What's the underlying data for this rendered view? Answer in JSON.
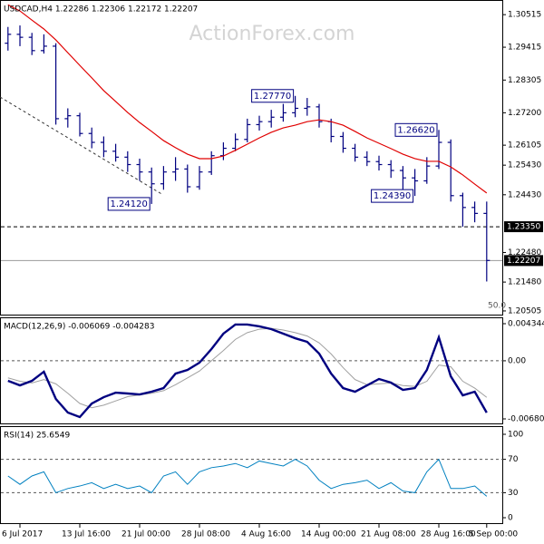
{
  "title": "USDCAD,H4  1.22286 1.22306 1.22172 1.22207",
  "watermark": "ActionForex.com",
  "chart_data": [
    {
      "type": "ohlc",
      "color": "#000080",
      "categories": [
        null,
        "6 Jul 2017",
        null,
        null,
        null,
        null,
        "13 Jul 16:00",
        null,
        null,
        null,
        null,
        "21 Jul 00:00",
        null,
        null,
        null,
        null,
        "28 Jul 08:00",
        null,
        null,
        null,
        null,
        "4 Aug 16:00",
        null,
        null,
        null,
        null,
        "14 Aug 00:00",
        null,
        null,
        null,
        null,
        "21 Aug 08:00",
        null,
        null,
        null,
        null,
        "28 Aug 16:00",
        null,
        null,
        null,
        "5 Sep 00:00"
      ],
      "open": [
        1.2955,
        1.2985,
        1.2975,
        1.293,
        1.2945,
        1.27,
        1.271,
        1.265,
        1.262,
        1.259,
        1.257,
        1.2545,
        1.252,
        1.248,
        1.252,
        1.253,
        1.247,
        1.252,
        1.2575,
        1.26,
        1.263,
        1.268,
        1.269,
        1.2705,
        1.272,
        1.2735,
        1.274,
        1.269,
        1.264,
        1.26,
        1.257,
        1.2555,
        1.2545,
        1.2525,
        1.25,
        1.249,
        1.254,
        1.262,
        1.244,
        1.24,
        1.238
      ],
      "high": [
        1.301,
        1.3015,
        1.299,
        1.2985,
        1.2955,
        1.2735,
        1.272,
        1.267,
        1.264,
        1.2615,
        1.259,
        1.2565,
        1.2535,
        1.254,
        1.257,
        1.2545,
        1.254,
        1.259,
        1.262,
        1.265,
        1.27,
        1.271,
        1.273,
        1.275,
        1.2777,
        1.277,
        1.275,
        1.27,
        1.2655,
        1.2615,
        1.259,
        1.2575,
        1.256,
        1.254,
        1.253,
        1.257,
        1.2662,
        1.263,
        1.245,
        1.242,
        1.242
      ],
      "low": [
        1.293,
        1.2945,
        1.2915,
        1.292,
        1.268,
        1.267,
        1.264,
        1.26,
        1.257,
        1.2555,
        1.252,
        1.249,
        1.2412,
        1.246,
        1.249,
        1.245,
        1.246,
        1.251,
        1.256,
        1.259,
        1.262,
        1.266,
        1.267,
        1.269,
        1.2705,
        1.271,
        1.267,
        1.262,
        1.2585,
        1.2555,
        1.254,
        1.2525,
        1.25,
        1.246,
        1.2439,
        1.248,
        1.253,
        1.242,
        1.2335,
        1.235,
        1.215
      ],
      "close": [
        1.2985,
        1.2975,
        1.293,
        1.2945,
        1.27,
        1.271,
        1.265,
        1.262,
        1.259,
        1.257,
        1.2545,
        1.252,
        1.248,
        1.252,
        1.253,
        1.247,
        1.252,
        1.2575,
        1.26,
        1.263,
        1.268,
        1.269,
        1.2705,
        1.272,
        1.2735,
        1.274,
        1.269,
        1.264,
        1.26,
        1.257,
        1.2555,
        1.2545,
        1.2525,
        1.25,
        1.249,
        1.254,
        1.262,
        1.244,
        1.24,
        1.238,
        1.2221
      ],
      "ma": {
        "color": "#e00000",
        "values": [
          1.3085,
          1.3064,
          1.3033,
          1.3003,
          1.2966,
          1.2923,
          1.288,
          1.2838,
          1.2795,
          1.2758,
          1.2721,
          1.2687,
          1.2657,
          1.2626,
          1.2602,
          1.258,
          1.2565,
          1.2565,
          1.2574,
          1.2593,
          1.2614,
          1.2635,
          1.2654,
          1.2669,
          1.2678,
          1.269,
          1.2696,
          1.269,
          1.2678,
          1.2657,
          1.2635,
          1.2617,
          1.2599,
          1.258,
          1.2565,
          1.2556,
          1.2556,
          1.2537,
          1.251,
          1.2479,
          1.2449
        ]
      },
      "annotations": [
        {
          "value": 1.2777,
          "label": "1.27770"
        },
        {
          "value": 1.2662,
          "label": "1.26620"
        },
        {
          "value": 1.2439,
          "label": "1.24390"
        },
        {
          "value": 1.2412,
          "label": "1.24120"
        }
      ],
      "levels": [
        {
          "value": 1.2335,
          "label": "1.23350",
          "style": "dashed"
        },
        {
          "value": 1.22207,
          "label": "1.22207",
          "style": "solid"
        }
      ],
      "ylim": [
        1.2035,
        1.3101
      ],
      "yticks": [
        1.30515,
        1.29415,
        1.28305,
        {
          "value": 1.272,
          "label": "1.27200"
        },
        1.26105,
        {
          "value": 1.2543,
          "label": "1.25430"
        },
        {
          "value": 1.2443,
          "label": "1.24430"
        },
        {
          "value": 1.2248,
          "label": "1.22480"
        },
        {
          "value": 1.2148,
          "label": "1.21480"
        },
        1.20505
      ],
      "scale_label": "50.0"
    },
    {
      "type": "macd",
      "title": "MACD(12,26,9) -0.006069 -0.004283",
      "series": [
        {
          "color": "#000080",
          "values": [
            -0.00235,
            -0.00288,
            -0.00235,
            -0.00128,
            -0.00447,
            -0.00606,
            -0.00659,
            -0.005,
            -0.00426,
            -0.00373,
            -0.00383,
            -0.00394,
            -0.00362,
            -0.0032,
            -0.0015,
            -0.00107,
            -0.00022,
            0.00137,
            0.00318,
            0.00424,
            0.00424,
            0.00403,
            0.00371,
            0.00318,
            0.00264,
            0.00222,
            0.00084,
            -0.0015,
            -0.0032,
            -0.00362,
            -0.00288,
            -0.00213,
            -0.00256,
            -0.00341,
            -0.0032,
            -0.00107,
            0.00275,
            -0.00182,
            -0.00405,
            -0.00362,
            -0.006069
          ]
        },
        {
          "color": "#a0a0a0",
          "values": [
            -0.002,
            -0.0024,
            -0.0026,
            -0.0022,
            -0.0027,
            -0.0038,
            -0.005,
            -0.0055,
            -0.0052,
            -0.0047,
            -0.0042,
            -0.004,
            -0.0038,
            -0.0035,
            -0.0028,
            -0.002,
            -0.0012,
            0.0,
            0.0012,
            0.0025,
            0.0033,
            0.0037,
            0.0038,
            0.0036,
            0.0033,
            0.0029,
            0.0021,
            0.0008,
            -0.0008,
            -0.0022,
            -0.0028,
            -0.0027,
            -0.0026,
            -0.0029,
            -0.003,
            -0.0024,
            -0.0005,
            -0.0007,
            -0.0024,
            -0.0032,
            -0.004283
          ]
        }
      ],
      "ylim": [
        -0.007439,
        0.005087
      ],
      "yticks": [
        0.004344,
        {
          "value": 0,
          "label": "0.00"
        },
        -0.006802
      ]
    },
    {
      "type": "line",
      "title": "RSI(14) 25.6549",
      "color": "#0080c0",
      "values": [
        50,
        40,
        50,
        55,
        30,
        35,
        38,
        42,
        35,
        40,
        35,
        38,
        30,
        50,
        55,
        40,
        55,
        60,
        62,
        65,
        60,
        68,
        65,
        62,
        70,
        62,
        45,
        35,
        40,
        42,
        45,
        35,
        42,
        32,
        30,
        55,
        70,
        35,
        35,
        38,
        25.6549
      ],
      "ylim": [
        -7.6,
        109.8
      ],
      "yticks": [
        100,
        70,
        30,
        0
      ]
    }
  ]
}
